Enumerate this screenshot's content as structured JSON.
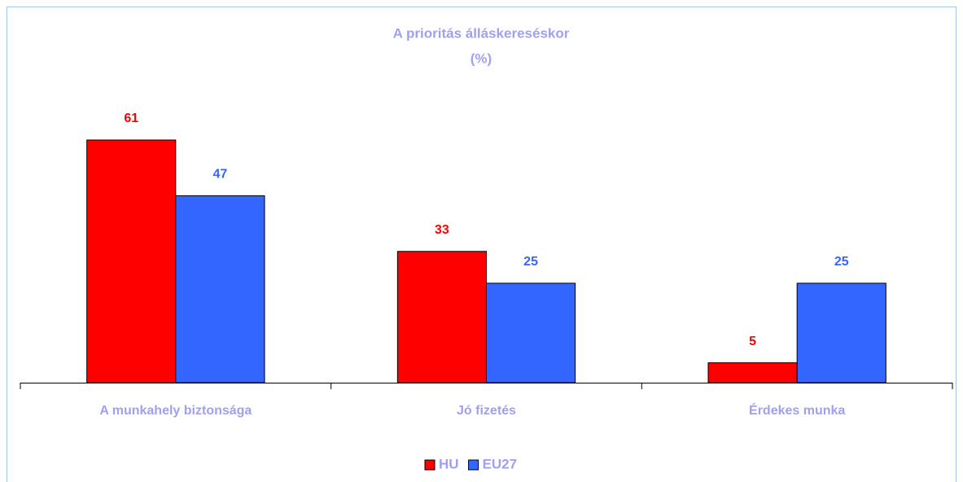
{
  "chart_data": {
    "type": "bar",
    "title": "A prioritás álláskereséskor",
    "subtitle": "(%)",
    "categories": [
      "A munkahely biztonsága",
      "Jó fizetés",
      "Érdekes munka"
    ],
    "series": [
      {
        "name": "HU",
        "color": "#ff0000",
        "values": [
          61,
          33,
          5
        ]
      },
      {
        "name": "EU27",
        "color": "#3366ff",
        "values": [
          47,
          25,
          25
        ]
      }
    ],
    "ylim": [
      0,
      70
    ],
    "legend": "bottom"
  }
}
